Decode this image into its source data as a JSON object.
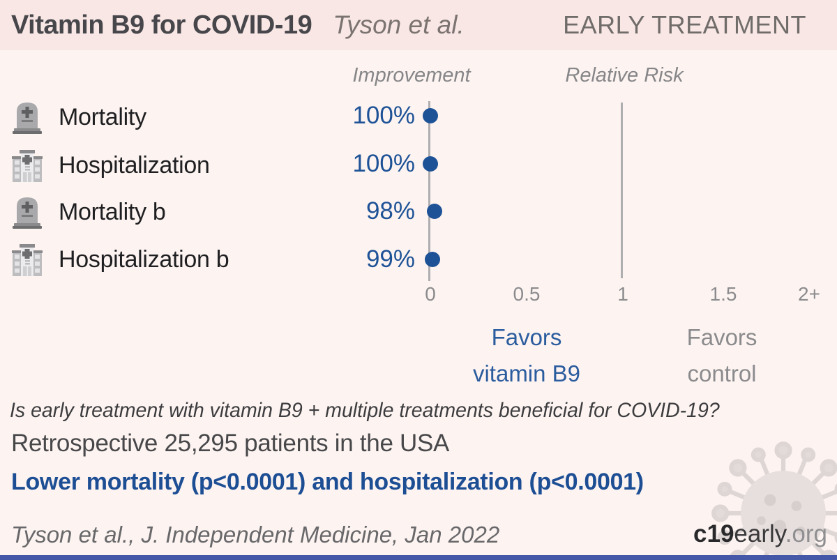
{
  "header": {
    "title": "Vitamin B9 for COVID-19",
    "author": "Tyson et al.",
    "stage": "EARLY TREATMENT"
  },
  "columns": {
    "improvement": "Improvement",
    "relative_risk": "Relative Risk"
  },
  "chart_data": {
    "type": "forest",
    "title": "Vitamin B9 for COVID-19, Tyson et al., EARLY TREATMENT",
    "xlabel": "Relative Risk",
    "x_ticks": [
      "0",
      "0.5",
      "1",
      "1.5",
      "2+"
    ],
    "x_range": [
      0,
      2
    ],
    "reference_line": 1,
    "rows": [
      {
        "icon": "tombstone-icon",
        "label": "Mortality",
        "improvement": "100%",
        "relative_risk": 0.0
      },
      {
        "icon": "hospital-icon",
        "label": "Hospitalization",
        "improvement": "100%",
        "relative_risk": 0.0
      },
      {
        "icon": "tombstone-icon",
        "label": "Mortality b",
        "improvement": "98%",
        "relative_risk": 0.02
      },
      {
        "icon": "hospital-icon",
        "label": "Hospitalization b",
        "improvement": "99%",
        "relative_risk": 0.01
      }
    ],
    "legend_left": "Favors vitamin B9",
    "legend_right": "Favors control"
  },
  "favors": {
    "left_line1": "Favors",
    "left_line2": "vitamin B9",
    "right_line1": "Favors",
    "right_line2": "control"
  },
  "summary": {
    "question": "Is early treatment with vitamin B9 + multiple treatments beneficial for COVID-19?",
    "cohort": "Retrospective 25,295 patients in the USA",
    "finding": "Lower mortality (p<0.0001) and hospitalization (p<0.0001)"
  },
  "footer": {
    "citation": "Tyson et al., J. Independent Medicine, Jan 2022",
    "logo_prefix": "c19",
    "logo_mid": "early",
    "logo_suffix": ".org"
  },
  "colors": {
    "accent_blue": "#1e5296",
    "favors_blue": "#2b5c9e",
    "finding_blue": "#1d4e94",
    "page_bg": "#fdf4f2",
    "header_bg": "#f9e7e5",
    "line_gray": "#aeaeb0",
    "text_gray": "#8b8b8d",
    "bottom_bar": "#4557a7"
  }
}
